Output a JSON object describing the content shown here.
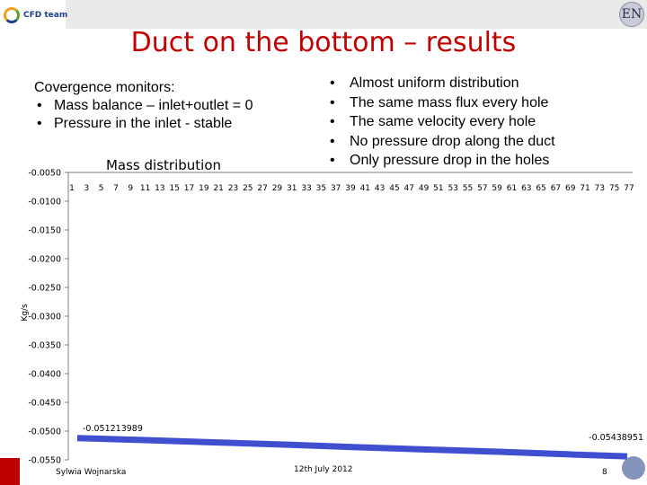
{
  "slide": {
    "title": "Duct on the bottom – results",
    "logo_left_text": "CFD team",
    "logo_right_text": "EN",
    "monitors_heading": "Covergence monitors:",
    "monitors_items": [
      "Mass balance – inlet+outlet = 0",
      "Pressure in the inlet - stable"
    ],
    "results_bullets": [
      "Almost uniform distribution",
      "The same mass flux every hole",
      "The same velocity every hole",
      "No pressure drop along the duct",
      "Only pressure drop in the holes"
    ],
    "footer": {
      "author": "Sylwia Wojnarska",
      "date": "12th July 2012",
      "page": "8"
    }
  },
  "chart_data": {
    "type": "line",
    "title": "Mass distribution",
    "xlabel": "",
    "ylabel": "Kg/s",
    "ylim": [
      -0.055,
      -0.005
    ],
    "yticks": [
      "-0.0050",
      "-0.0100",
      "-0.0150",
      "-0.0200",
      "-0.0250",
      "-0.0300",
      "-0.0350",
      "-0.0400",
      "-0.0450",
      "-0.0500",
      "-0.0550"
    ],
    "xticks": [
      "1",
      "3",
      "5",
      "7",
      "9",
      "11",
      "13",
      "15",
      "17",
      "19",
      "21",
      "23",
      "25",
      "27",
      "29",
      "31",
      "33",
      "35",
      "37",
      "39",
      "41",
      "43",
      "45",
      "47",
      "49",
      "51",
      "53",
      "55",
      "57",
      "59",
      "61",
      "63",
      "65",
      "67",
      "69",
      "71",
      "73",
      "75",
      "77"
    ],
    "x_axis_at_top": true,
    "grid": false,
    "series_color": "#3f4fd0",
    "x": [
      1,
      10,
      20,
      30,
      40,
      50,
      60,
      70,
      78
    ],
    "y": [
      -0.051213989,
      -0.05155,
      -0.05195,
      -0.05235,
      -0.0528,
      -0.0532,
      -0.0536,
      -0.05405,
      -0.0543895
    ],
    "annotations": [
      {
        "text": "-0.051213989",
        "x": 1,
        "y": -0.051213989
      },
      {
        "text": "-0.05438951",
        "x": 78,
        "y": -0.0543895
      }
    ]
  }
}
